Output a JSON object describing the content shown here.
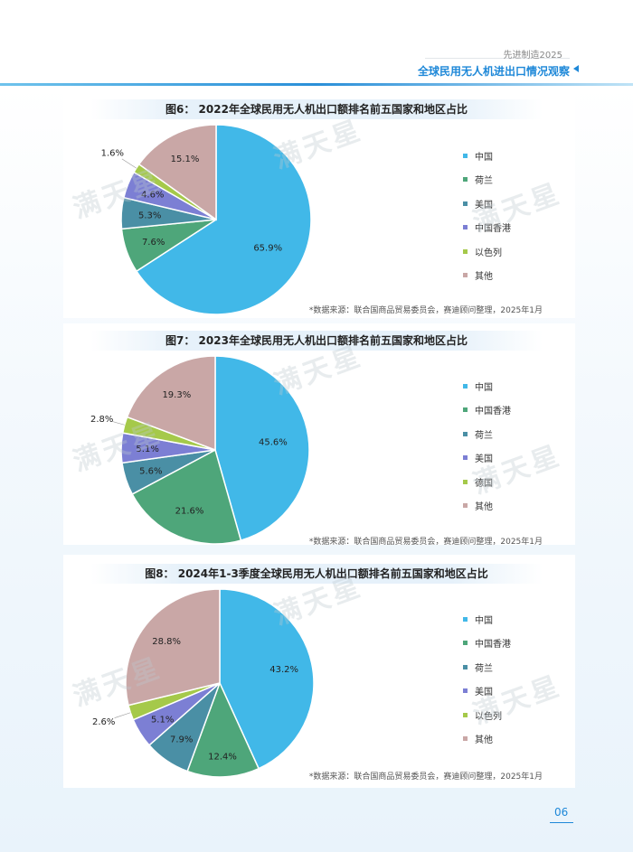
{
  "header": {
    "tag": "先进制造2025",
    "title": "全球民用无人机进出口情况观察"
  },
  "watermark": "满天星",
  "page_number": "06",
  "charts": [
    {
      "title": "图6： 2022年全球民用无人机出口额排名前五国家和地区占比",
      "source": "*数据来源：联合国商品贸易委员会，赛迪顾问整理，2025年1月",
      "legend": [
        "中国",
        "荷兰",
        "美国",
        "中国香港",
        "以色列",
        "其他"
      ]
    },
    {
      "title": "图7： 2023年全球民用无人机出口额排名前五国家和地区占比",
      "source": "*数据来源：联合国商品贸易委员会，赛迪顾问整理，2025年1月",
      "legend": [
        "中国",
        "中国香港",
        "荷兰",
        "美国",
        "德国",
        "其他"
      ]
    },
    {
      "title": "图8： 2024年1-3季度全球民用无人机出口额排名前五国家和地区占比",
      "source": "*数据来源：联合国商品贸易委员会，赛迪顾问整理，2025年1月",
      "legend": [
        "中国",
        "中国香港",
        "荷兰",
        "美国",
        "以色列",
        "其他"
      ]
    }
  ],
  "chart_data": [
    {
      "type": "pie",
      "title": "图6： 2022年全球民用无人机出口额排名前五国家和地区占比",
      "categories": [
        "中国",
        "荷兰",
        "美国",
        "中国香港",
        "以色列",
        "其他"
      ],
      "values": [
        65.9,
        7.6,
        5.3,
        4.6,
        1.6,
        15.1
      ],
      "labels": [
        "65.9%",
        "7.6%",
        "5.3%",
        "4.6%",
        "1.6%",
        "15.1%"
      ],
      "colors": [
        "#41b8e8",
        "#4ea67a",
        "#4a8fa5",
        "#7c7fd4",
        "#a5c94a",
        "#c9a7a6"
      ],
      "legend_position": "right"
    },
    {
      "type": "pie",
      "title": "图7： 2023年全球民用无人机出口额排名前五国家和地区占比",
      "categories": [
        "中国",
        "中国香港",
        "荷兰",
        "美国",
        "德国",
        "其他"
      ],
      "values": [
        45.6,
        21.6,
        5.6,
        5.1,
        2.8,
        19.3
      ],
      "labels": [
        "45.6%",
        "21.6%",
        "5.6%",
        "5.1%",
        "2.8%",
        "19.3%"
      ],
      "colors": [
        "#41b8e8",
        "#4ea67a",
        "#4a8fa5",
        "#7c7fd4",
        "#a5c94a",
        "#c9a7a6"
      ],
      "legend_position": "right"
    },
    {
      "type": "pie",
      "title": "图8： 2024年1-3季度全球民用无人机出口额排名前五国家和地区占比",
      "categories": [
        "中国",
        "中国香港",
        "荷兰",
        "美国",
        "以色列",
        "其他"
      ],
      "values": [
        43.2,
        12.4,
        7.9,
        5.1,
        2.6,
        28.8
      ],
      "labels": [
        "43.2%",
        "12.4%",
        "7.9%",
        "5.1%",
        "2.6%",
        "28.8%"
      ],
      "colors": [
        "#41b8e8",
        "#4ea67a",
        "#4a8fa5",
        "#7c7fd4",
        "#a5c94a",
        "#c9a7a6"
      ],
      "legend_position": "right"
    }
  ]
}
